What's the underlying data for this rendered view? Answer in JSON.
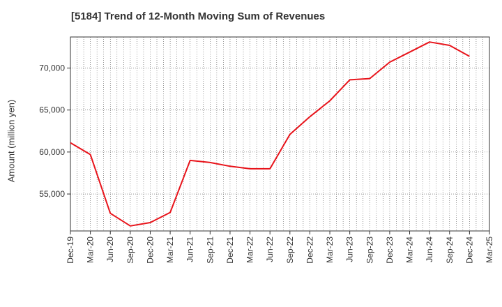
{
  "chart_data": {
    "type": "line",
    "title": "[5184]  Trend of 12-Month Moving Sum of Revenues",
    "xlabel": "",
    "ylabel": "Amount (million yen)",
    "x": [
      "Dec-19",
      "Mar-20",
      "Jun-20",
      "Sep-20",
      "Dec-20",
      "Mar-21",
      "Jun-21",
      "Sep-21",
      "Dec-21",
      "Mar-22",
      "Jun-22",
      "Sep-22",
      "Dec-22",
      "Mar-23",
      "Jun-23",
      "Sep-23",
      "Dec-23",
      "Mar-24",
      "Jun-24",
      "Sep-24",
      "Dec-24",
      "Mar-25"
    ],
    "series": [
      {
        "values": [
          61100,
          59700,
          52700,
          51200,
          51600,
          52800,
          59000,
          58750,
          58300,
          58000,
          58000,
          62100,
          64200,
          66100,
          68600,
          68750,
          70700,
          71900,
          73100,
          72700,
          71400,
          null
        ]
      }
    ],
    "ylim": [
      50600,
      73700
    ],
    "yticks": [
      55000,
      60000,
      65000,
      70000
    ],
    "ytick_labels": [
      "55,000",
      "60,000",
      "65,000",
      "70,000"
    ],
    "grid": true,
    "line_color": "#e8141b"
  }
}
